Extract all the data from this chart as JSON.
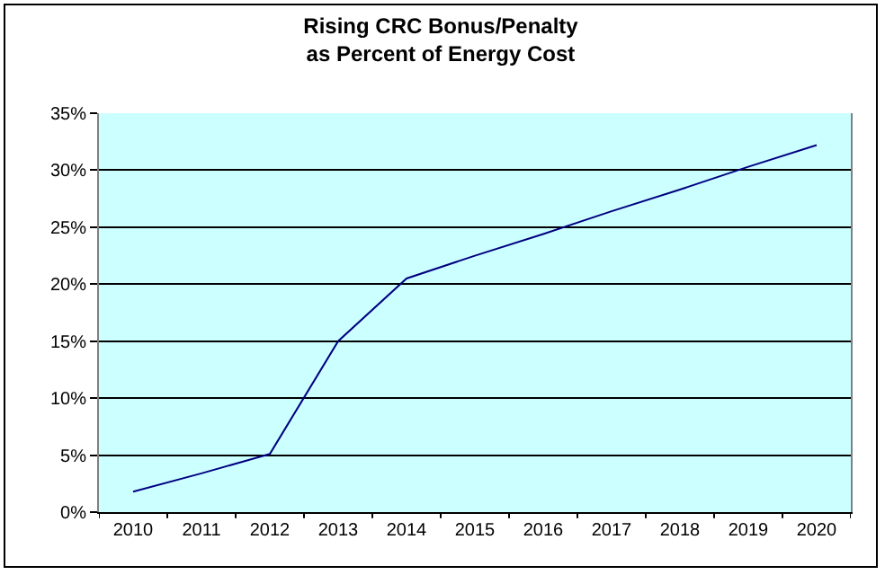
{
  "chart_data": {
    "type": "line",
    "title": "Rising CRC Bonus/Penalty\nas Percent of Energy Cost",
    "categories": [
      "2010",
      "2011",
      "2012",
      "2013",
      "2014",
      "2015",
      "2016",
      "2017",
      "2018",
      "2019",
      "2020"
    ],
    "series": [
      {
        "color": "#000080",
        "values": [
          1.8,
          3.4,
          5.1,
          15,
          20.5,
          22.5,
          24.4,
          26.4,
          28.3,
          30.3,
          32.2
        ]
      }
    ],
    "ylim": [
      0,
      35
    ],
    "yticks": [
      {
        "value": 0,
        "label": "0%"
      },
      {
        "value": 5,
        "label": "5%"
      },
      {
        "value": 10,
        "label": "10%"
      },
      {
        "value": 15,
        "label": "15%"
      },
      {
        "value": 20,
        "label": "20%"
      },
      {
        "value": 25,
        "label": "25%"
      },
      {
        "value": 30,
        "label": "30%"
      },
      {
        "value": 35,
        "label": "35%"
      }
    ],
    "grid": "y",
    "line_style": "solid"
  }
}
